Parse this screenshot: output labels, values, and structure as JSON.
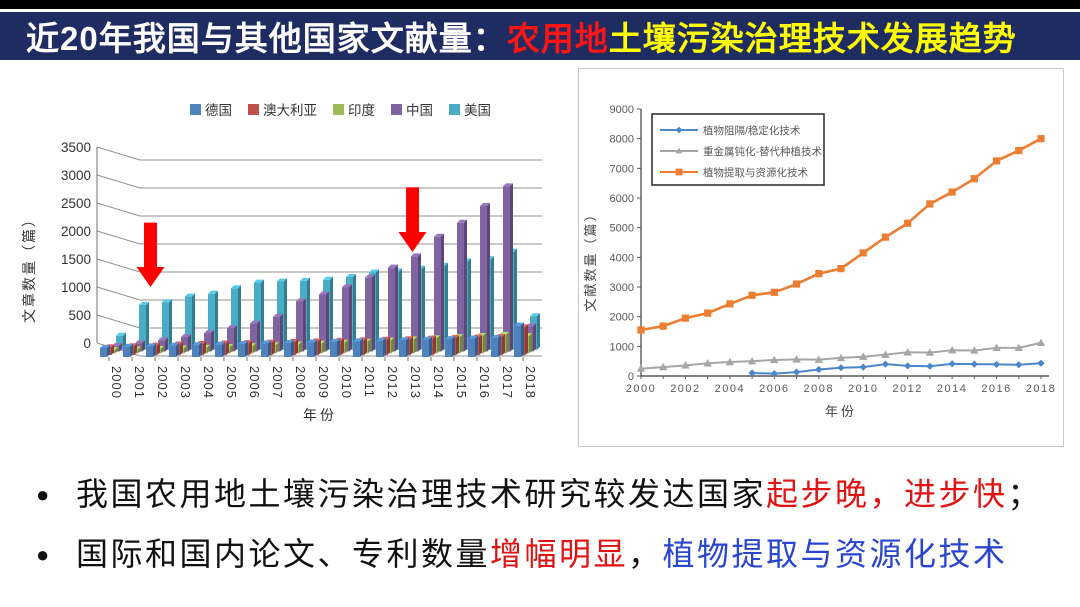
{
  "header": {
    "bg": "#1e2c62",
    "top_strip": "#000000",
    "segments": [
      {
        "text": "近20年我国与其他国家文献量：",
        "color": "#ffffff"
      },
      {
        "text": "农用地",
        "color": "#ff1414"
      },
      {
        "text": "土壤污染治理技术发展趋势",
        "color": "#ffff00"
      }
    ]
  },
  "chart_data": [
    {
      "id": "countries-bar-chart",
      "type": "bar",
      "style": "3d-clustered-column",
      "categories": [
        "2000",
        "2001",
        "2002",
        "2003",
        "2004",
        "2005",
        "2006",
        "2007",
        "2008",
        "2009",
        "2010",
        "2011",
        "2012",
        "2013",
        "2014",
        "2015",
        "2016",
        "2017",
        "2018"
      ],
      "series": [
        {
          "name": "德国",
          "color": "#4f81bd",
          "values": [
            160,
            180,
            190,
            200,
            210,
            220,
            230,
            240,
            250,
            260,
            270,
            280,
            290,
            300,
            310,
            320,
            330,
            340,
            560
          ]
        },
        {
          "name": "澳大利亚",
          "color": "#c0504d",
          "values": [
            140,
            160,
            170,
            190,
            200,
            210,
            215,
            225,
            235,
            245,
            255,
            265,
            275,
            285,
            295,
            305,
            315,
            325,
            500
          ]
        },
        {
          "name": "印度",
          "color": "#9bbb59",
          "values": [
            60,
            70,
            80,
            90,
            100,
            115,
            130,
            145,
            160,
            175,
            190,
            210,
            230,
            250,
            270,
            290,
            310,
            330,
            310
          ]
        },
        {
          "name": "中国",
          "color": "#8064a2",
          "values": [
            100,
            150,
            200,
            260,
            330,
            420,
            500,
            620,
            900,
            1020,
            1150,
            1320,
            1500,
            1700,
            2050,
            2300,
            2600,
            2950,
            450
          ]
        },
        {
          "name": "美国",
          "color": "#4bacc6",
          "values": [
            250,
            800,
            850,
            950,
            1000,
            1100,
            1200,
            1220,
            1230,
            1250,
            1300,
            1380,
            1400,
            1450,
            1500,
            1580,
            1620,
            1750,
            600
          ]
        }
      ],
      "ylabel": "文章数量（篇）",
      "xlabel": "年份",
      "ylim": [
        0,
        3500
      ],
      "ytick_step": 500,
      "legend_position": "top",
      "grid": true,
      "annotations": [
        {
          "type": "arrow-down",
          "category": "2001",
          "tip_value": 1000,
          "tail_value": 2150,
          "dx": 14,
          "color": "#fe0000"
        },
        {
          "type": "arrow-down",
          "category": "2013",
          "tip_value": 1625,
          "tail_value": 2780,
          "dx": 0,
          "color": "#fe0000"
        }
      ]
    },
    {
      "id": "technology-line-chart",
      "type": "line",
      "x": [
        2000,
        2001,
        2002,
        2003,
        2004,
        2005,
        2006,
        2007,
        2008,
        2009,
        2010,
        2011,
        2012,
        2013,
        2014,
        2015,
        2016,
        2017,
        2018
      ],
      "series": [
        {
          "name": "植物阻隔/稳定化技术",
          "color": "#4a86c8",
          "marker": "diamond",
          "values": [
            null,
            null,
            null,
            null,
            null,
            100,
            80,
            130,
            220,
            280,
            300,
            400,
            340,
            330,
            410,
            400,
            390,
            380,
            430
          ]
        },
        {
          "name": "重金属钝化-替代种植技术",
          "color": "#a6a6a6",
          "marker": "triangle",
          "values": [
            250,
            300,
            360,
            430,
            470,
            500,
            540,
            560,
            550,
            610,
            650,
            720,
            800,
            790,
            870,
            860,
            950,
            950,
            1120
          ]
        },
        {
          "name": "植物提取与资源化技术",
          "color": "#ed7d31",
          "marker": "square",
          "values": [
            1550,
            1680,
            1950,
            2120,
            2430,
            2720,
            2820,
            3100,
            3450,
            3620,
            4150,
            4680,
            5150,
            5800,
            6200,
            6650,
            7250,
            7600,
            8000
          ]
        }
      ],
      "ylabel": "文献数量（篇）",
      "xlabel": "年份",
      "ylim": [
        0,
        9000
      ],
      "ytick_step": 1000,
      "xtick_label_step": 2,
      "legend_position": "upper-left",
      "grid": false
    }
  ],
  "bullets": [
    {
      "segments": [
        {
          "text": "我国农用地土壤污染治理技术研究较发达国家",
          "color_key": "black"
        },
        {
          "text": "起步晚，进步快",
          "color_key": "red"
        },
        {
          "text": "；",
          "color_key": "black"
        }
      ]
    },
    {
      "segments": [
        {
          "text": "国际和国内论文、专利数量",
          "color_key": "black"
        },
        {
          "text": "增幅明显",
          "color_key": "red"
        },
        {
          "text": "，",
          "color_key": "black"
        },
        {
          "text": "植物提取与资源化技术",
          "color_key": "blue"
        }
      ]
    }
  ],
  "text_colors": {
    "black": "#111111",
    "red": "#e01212",
    "blue": "#2a46cf"
  }
}
